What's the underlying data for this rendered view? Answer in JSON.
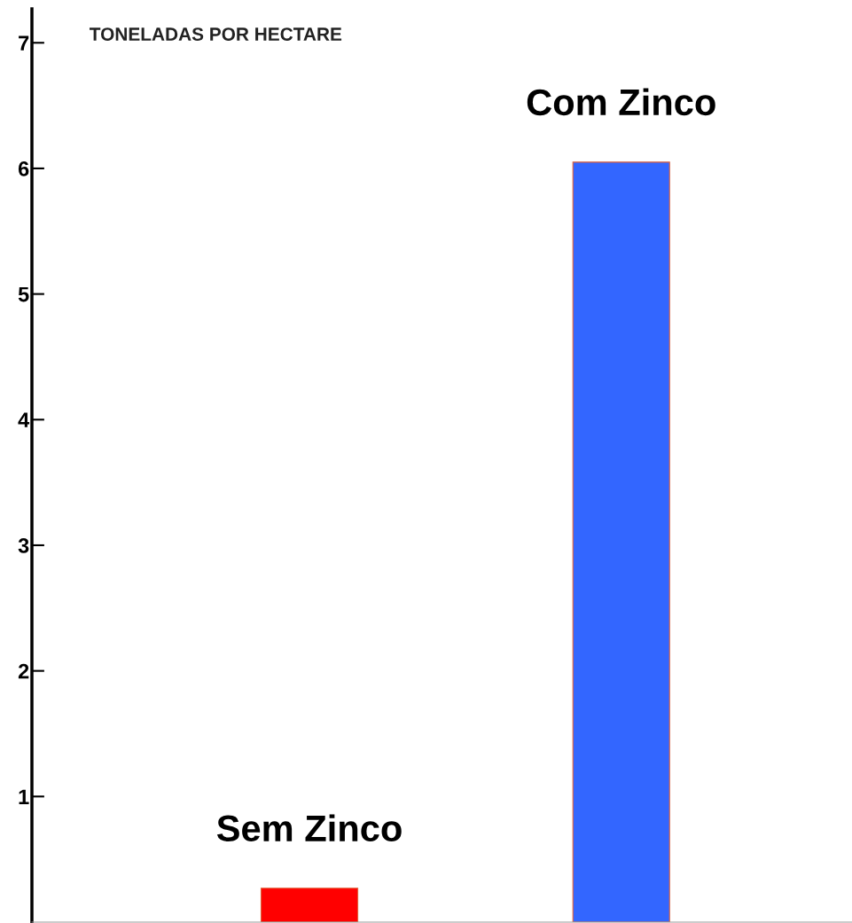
{
  "chart_data": {
    "type": "bar",
    "ylabel": "TONELADAS POR HECTARE",
    "categories": [
      "Sem Zinco",
      "Com Zinco"
    ],
    "values": [
      0.27,
      6.05
    ],
    "colors": [
      "#ff0000",
      "#3366ff"
    ],
    "ylim": [
      0,
      7.27
    ],
    "yticks": [
      1,
      2,
      3,
      4,
      5,
      6,
      7
    ],
    "grid": false
  }
}
